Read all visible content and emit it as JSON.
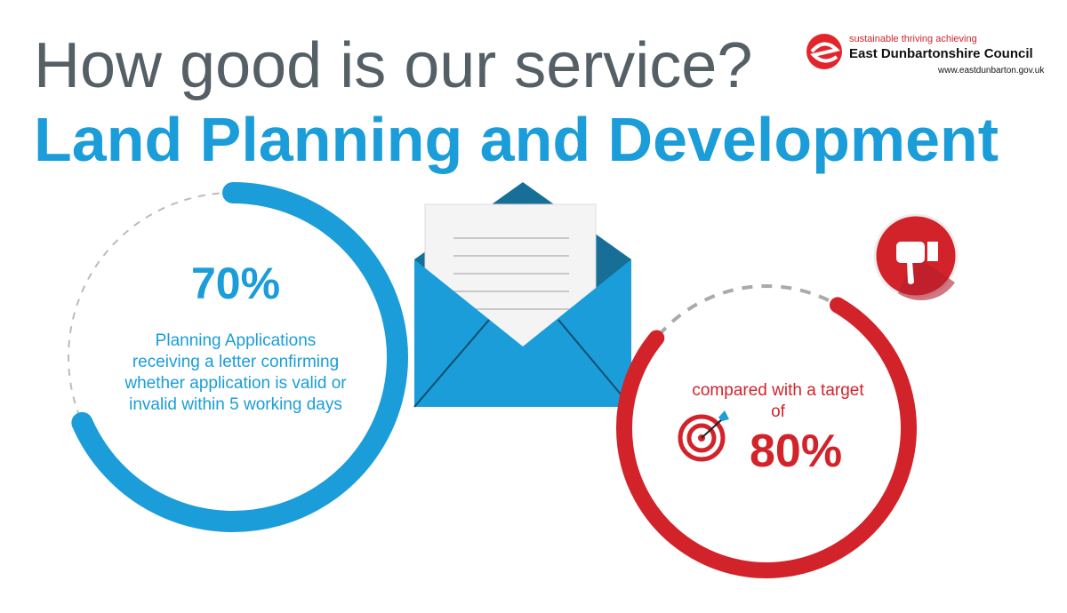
{
  "header": {
    "question": "How good is our service?",
    "service": "Land Planning and Development"
  },
  "logo": {
    "tagline": "sustainable thriving achieving",
    "name": "East Dunbartonshire Council",
    "url": "www.eastdunbarton.gov.uk"
  },
  "performance": {
    "value_label": "70%",
    "value": 70,
    "description": "Planning Applications receiving a letter confirming whether application is valid or invalid within 5 working days",
    "color": "#1a9dd9"
  },
  "target": {
    "label": "compared with a target of",
    "value_label": "80%",
    "value": 80,
    "color": "#d2232a",
    "status_icon": "thumbs-down-icon"
  },
  "icons": [
    "envelope-letter-icon",
    "target-arrow-icon",
    "thumbs-down-icon",
    "council-logo-icon"
  ]
}
